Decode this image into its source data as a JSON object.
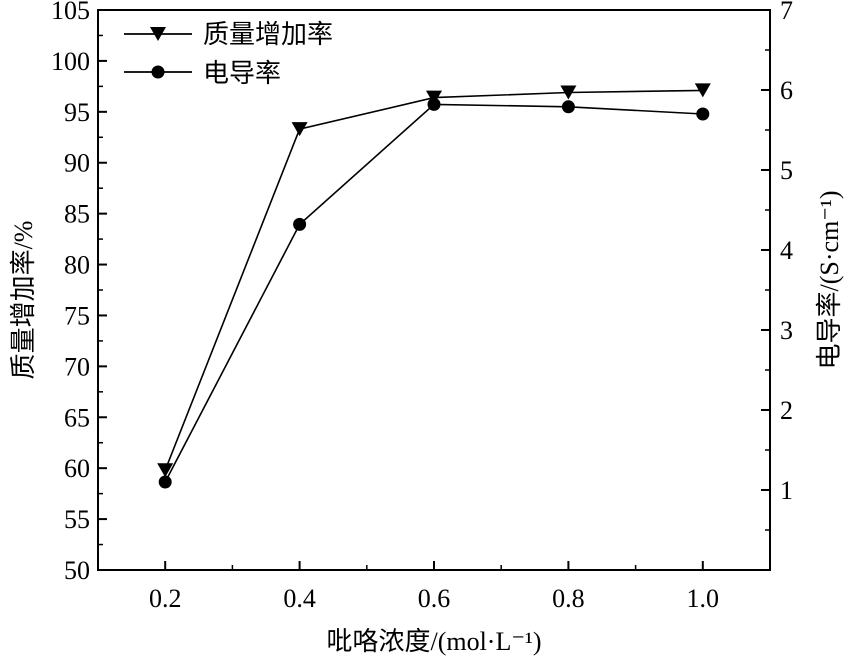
{
  "chart_data": {
    "type": "line",
    "xlabel": "吡咯浓度/(mol·L⁻¹)",
    "ylabel_left": "质量增加率/%",
    "ylabel_right": "电导率/(S·cm⁻¹)",
    "x": [
      0.2,
      0.4,
      0.6,
      0.8,
      1.0
    ],
    "x_tick_labels": [
      "0.2",
      "0.4",
      "0.6",
      "0.8",
      "1.0"
    ],
    "xlim": [
      0.1,
      1.1
    ],
    "ylim_left": [
      50,
      105
    ],
    "ylim_right": [
      0,
      7
    ],
    "left_ticks": [
      "50",
      "55",
      "60",
      "65",
      "70",
      "75",
      "80",
      "85",
      "90",
      "95",
      "100",
      "105"
    ],
    "right_ticks": [
      "1",
      "2",
      "3",
      "4",
      "5",
      "6",
      "7"
    ],
    "legend_position": "top-left",
    "grid": false,
    "series": [
      {
        "name": "质量增加率",
        "axis": "left",
        "marker": "down-triangle",
        "values": [
          59.8,
          93.3,
          96.4,
          96.9,
          97.1
        ]
      },
      {
        "name": "电导率",
        "axis": "right",
        "marker": "circle",
        "values": [
          1.1,
          4.32,
          5.82,
          5.79,
          5.7
        ]
      }
    ]
  }
}
